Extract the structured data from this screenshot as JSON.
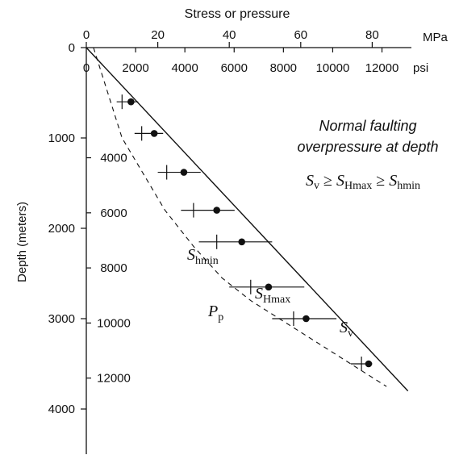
{
  "chart_data": {
    "type": "scatter",
    "title": "Stress or pressure",
    "ylabel": "Depth (meters)",
    "x_axes": {
      "mpa": {
        "unit": "MPa",
        "ticks": [
          "0",
          "20",
          "40",
          "60",
          "80"
        ]
      },
      "psi": {
        "unit": "psi",
        "ticks": [
          "2000",
          "4000",
          "6000",
          "8000",
          "10000",
          "12000"
        ]
      }
    },
    "y_axes": {
      "meters": {
        "ticks": [
          "0",
          "1000",
          "2000",
          "3000",
          "4000"
        ]
      },
      "feet": {
        "ticks": [
          "4000",
          "6000",
          "8000",
          "10000",
          "12000"
        ]
      }
    },
    "xlim_mpa": [
      0,
      90
    ],
    "ylim_m": [
      0,
      4000
    ],
    "annotations": {
      "regime_line1": "Normal faulting",
      "regime_line2": "overpressure at depth",
      "relation": {
        "S1": "S",
        "S1_sub": "v",
        "op1": " ≥ ",
        "S2": "S",
        "S2_sub": "Hmax",
        "op2": " ≥ ",
        "S3": "S",
        "S3_sub": "hmin"
      }
    },
    "curve_labels": {
      "sv": {
        "main": "S",
        "sub": "v"
      },
      "shmax": {
        "main": "S",
        "sub": "Hmax"
      },
      "shmin": {
        "main": "S",
        "sub": "hmin"
      },
      "pp": {
        "main": "P",
        "sub": "p"
      }
    },
    "series": [
      {
        "name": "Sv",
        "kind": "line",
        "x": [
          0,
          90
        ],
        "y": [
          0,
          3800
        ]
      },
      {
        "name": "Pp",
        "kind": "dashed",
        "x": [
          2,
          6,
          10,
          16,
          22,
          30,
          38,
          46,
          54,
          62,
          70,
          78,
          84
        ],
        "y": [
          0,
          500,
          1000,
          1400,
          1800,
          2200,
          2550,
          2800,
          3000,
          3200,
          3400,
          3600,
          3750
        ]
      },
      {
        "name": "SHmax",
        "kind": "points",
        "x": [
          12.5,
          19,
          27.3,
          36.5,
          43.5,
          51,
          61.5,
          79
        ],
        "y": [
          600,
          950,
          1380,
          1800,
          2150,
          2650,
          3000,
          3500
        ]
      },
      {
        "name": "Shmin",
        "kind": "bars",
        "depth": [
          600,
          950,
          1380,
          1800,
          2150,
          2650,
          3000,
          3500
        ],
        "center": [
          10,
          15.5,
          22.5,
          30,
          36.5,
          46,
          58,
          77
        ],
        "xmin": [
          8.5,
          13.5,
          20,
          26.5,
          31.5,
          40,
          52,
          74
        ],
        "xmax": [
          14.5,
          21.5,
          32,
          41.5,
          52,
          61,
          70,
          80
        ]
      }
    ]
  }
}
